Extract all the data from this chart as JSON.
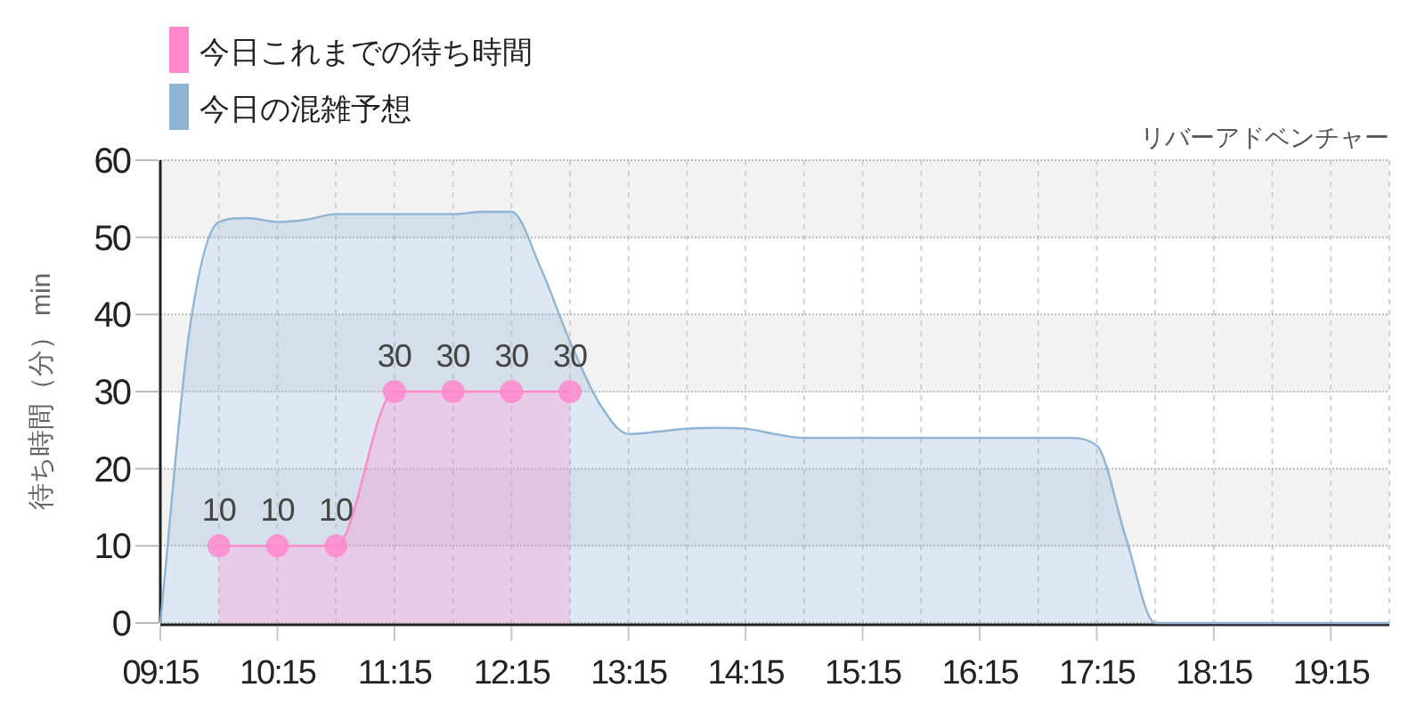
{
  "chart_data": {
    "type": "area",
    "title": "リバーアドベンチャー",
    "ylabel": "待ち時間（分） min",
    "xlim": [
      9.25,
      19.75
    ],
    "xticks": [
      {
        "value": 9.25,
        "label": "09:15"
      },
      {
        "value": 9.75,
        "label": null
      },
      {
        "value": 10.25,
        "label": "10:15"
      },
      {
        "value": 10.75,
        "label": null
      },
      {
        "value": 11.25,
        "label": "11:15"
      },
      {
        "value": 11.75,
        "label": null
      },
      {
        "value": 12.25,
        "label": "12:15"
      },
      {
        "value": 12.75,
        "label": null
      },
      {
        "value": 13.25,
        "label": "13:15"
      },
      {
        "value": 13.75,
        "label": null
      },
      {
        "value": 14.25,
        "label": "14:15"
      },
      {
        "value": 14.75,
        "label": null
      },
      {
        "value": 15.25,
        "label": "15:15"
      },
      {
        "value": 15.75,
        "label": null
      },
      {
        "value": 16.25,
        "label": "16:15"
      },
      {
        "value": 16.75,
        "label": null
      },
      {
        "value": 17.25,
        "label": "17:15"
      },
      {
        "value": 17.75,
        "label": null
      },
      {
        "value": 18.25,
        "label": "18:15"
      },
      {
        "value": 18.75,
        "label": null
      },
      {
        "value": 19.25,
        "label": "19:15"
      },
      {
        "value": 19.75,
        "label": null
      }
    ],
    "ylim": [
      0,
      60
    ],
    "yticks": [
      0,
      10,
      20,
      30,
      40,
      50,
      60
    ],
    "grid": true,
    "legend": "top left",
    "bands": [
      {
        "axis": "y",
        "from": 10,
        "to": 20,
        "color": "#f2f2f2"
      },
      {
        "axis": "y",
        "from": 30,
        "to": 40,
        "color": "#f2f2f2"
      },
      {
        "axis": "y",
        "from": 50,
        "to": 60,
        "color": "#f2f2f2"
      }
    ],
    "series": [
      {
        "name": "今日これまでの待ち時間",
        "color": "#ff88cc",
        "marker": "circle",
        "x": [
          9.75,
          10.25,
          10.75,
          11.25,
          11.75,
          12.25,
          12.75
        ],
        "values": [
          10,
          10,
          10,
          30,
          30,
          30,
          30
        ],
        "value_labels": [
          "10",
          "10",
          "10",
          "30",
          "30",
          "30",
          "30"
        ]
      },
      {
        "name": "今日の混雑予想",
        "color": "#90b4d4",
        "marker": "none",
        "x": [
          9.25,
          9.5,
          9.75,
          10.0,
          10.25,
          10.5,
          10.75,
          11.0,
          11.25,
          11.5,
          11.75,
          12.0,
          12.25,
          12.5,
          12.75,
          13.0,
          13.25,
          13.5,
          13.75,
          14.0,
          14.25,
          14.5,
          14.75,
          15.0,
          15.25,
          15.5,
          15.75,
          16.0,
          16.25,
          16.5,
          16.75,
          17.0,
          17.25,
          17.5,
          17.75,
          18.0,
          18.25,
          18.5,
          18.75,
          19.0,
          19.25,
          19.5,
          19.75
        ],
        "values": [
          0,
          38,
          52,
          52.5,
          52,
          52.3,
          53,
          53,
          53,
          53,
          53,
          53.3,
          53.3,
          46,
          36.5,
          28.5,
          24.5,
          24.8,
          25.2,
          25.3,
          25.2,
          24.5,
          24,
          24,
          24,
          24,
          24,
          24,
          24,
          24,
          24,
          24,
          23,
          11,
          0,
          0,
          0,
          0,
          0,
          0,
          0,
          0,
          0
        ]
      }
    ]
  }
}
